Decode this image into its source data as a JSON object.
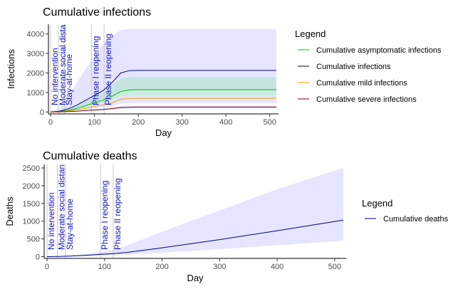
{
  "chart_data": [
    {
      "type": "line",
      "title": "Cumulative infections",
      "xlabel": "Day",
      "ylabel": "Infections",
      "xlim": [
        -5,
        520
      ],
      "ylim": [
        -100,
        4500
      ],
      "xticks": [
        0,
        100,
        200,
        300,
        400,
        500
      ],
      "yticks": [
        0,
        1000,
        2000,
        3000,
        4000
      ],
      "legend_title": "Legend",
      "legend_position": "right",
      "series": [
        {
          "name": "Cumulative asymptomatic infections",
          "color": "#00c000",
          "x": [
            0,
            20,
            40,
            60,
            80,
            100,
            120,
            140,
            160,
            180,
            200,
            300,
            400,
            515
          ],
          "y": [
            0,
            20,
            80,
            180,
            320,
            470,
            600,
            800,
            1050,
            1130,
            1140,
            1140,
            1140,
            1140
          ],
          "band_upper": [
            0,
            30,
            120,
            300,
            550,
            800,
            1000,
            1350,
            1700,
            1780,
            1790,
            1790,
            1790,
            1790
          ],
          "band_lower": [
            0,
            15,
            50,
            110,
            200,
            300,
            380,
            500,
            600,
            620,
            620,
            620,
            620,
            620
          ]
        },
        {
          "name": "Cumulative infections",
          "color": "#00008b",
          "x": [
            0,
            20,
            40,
            60,
            80,
            100,
            120,
            140,
            160,
            180,
            200,
            300,
            400,
            515
          ],
          "y": [
            0,
            40,
            160,
            350,
            600,
            850,
            1100,
            1500,
            2000,
            2120,
            2130,
            2130,
            2130,
            2130
          ],
          "band_upper": [
            0,
            200,
            800,
            1500,
            2200,
            2900,
            3500,
            3900,
            4200,
            4250,
            4250,
            4250,
            4250,
            4250
          ],
          "band_lower": [
            0,
            20,
            90,
            200,
            350,
            500,
            650,
            900,
            1100,
            1130,
            1140,
            1140,
            1140,
            1140
          ]
        },
        {
          "name": "Cumulative mild infections",
          "color": "#e69f00",
          "x": [
            0,
            20,
            40,
            60,
            80,
            100,
            120,
            140,
            160,
            180,
            200,
            300,
            400,
            515
          ],
          "y": [
            0,
            15,
            50,
            110,
            190,
            280,
            360,
            470,
            650,
            690,
            700,
            700,
            700,
            700
          ],
          "band_upper": [
            0,
            20,
            70,
            150,
            260,
            380,
            480,
            600,
            800,
            840,
            850,
            850,
            850,
            850
          ],
          "band_lower": [
            0,
            10,
            35,
            80,
            140,
            200,
            250,
            320,
            430,
            450,
            460,
            460,
            460,
            460
          ]
        },
        {
          "name": "Cumulative severe infections",
          "color": "#800000",
          "x": [
            0,
            20,
            40,
            60,
            80,
            100,
            120,
            140,
            160,
            180,
            200,
            300,
            400,
            515
          ],
          "y": [
            0,
            5,
            20,
            40,
            70,
            100,
            130,
            170,
            230,
            245,
            250,
            250,
            250,
            250
          ],
          "band_upper": [
            0,
            8,
            30,
            60,
            100,
            140,
            180,
            230,
            300,
            320,
            330,
            330,
            330,
            330
          ],
          "band_lower": [
            0,
            3,
            12,
            25,
            45,
            65,
            85,
            110,
            150,
            160,
            165,
            165,
            165,
            165
          ]
        }
      ],
      "annotations": [
        {
          "x": 0,
          "label": "No intervention"
        },
        {
          "x": 18,
          "label": "Moderate social distancing"
        },
        {
          "x": 32,
          "label": "Stay-at-home"
        },
        {
          "x": 93,
          "label": "Phase I reopening"
        },
        {
          "x": 122,
          "label": "Phase II reopening"
        }
      ],
      "colors": {
        "band": "#e5e5ff",
        "vline": "#c8c8c8"
      }
    },
    {
      "type": "line",
      "title": "Cumulative deaths",
      "xlabel": "Day",
      "ylabel": "Deaths",
      "xlim": [
        -5,
        520
      ],
      "ylim": [
        -50,
        2600
      ],
      "xticks": [
        0,
        100,
        200,
        300,
        400,
        500
      ],
      "yticks": [
        0,
        500,
        1000,
        1500,
        2000,
        2500
      ],
      "legend_title": "Legend",
      "legend_position": "right",
      "series": [
        {
          "name": "Cumulative deaths",
          "color": "#00008b",
          "x": [
            0,
            20,
            40,
            60,
            80,
            100,
            120,
            140,
            200,
            300,
            400,
            515
          ],
          "y": [
            0,
            5,
            15,
            30,
            50,
            70,
            90,
            120,
            250,
            480,
            730,
            1030
          ],
          "band_upper": [
            0,
            10,
            30,
            60,
            100,
            150,
            220,
            320,
            700,
            1300,
            1900,
            2500
          ],
          "band_lower": [
            0,
            2,
            6,
            12,
            20,
            30,
            40,
            55,
            110,
            210,
            320,
            450
          ]
        }
      ],
      "annotations": [
        {
          "x": 0,
          "label": "No intervention"
        },
        {
          "x": 18,
          "label": "Moderate social distancing"
        },
        {
          "x": 32,
          "label": "Stay-at-home"
        },
        {
          "x": 93,
          "label": "Phase I reopening"
        },
        {
          "x": 115,
          "label": "Phase II reopening"
        }
      ],
      "colors": {
        "band": "#e5e5ff",
        "vline": "#c8c8c8"
      }
    }
  ]
}
